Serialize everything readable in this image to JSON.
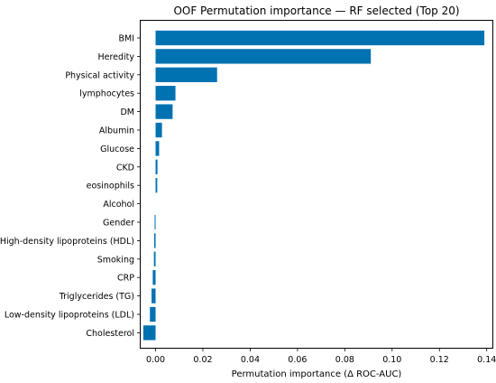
{
  "chart_data": {
    "type": "bar",
    "orientation": "horizontal",
    "title": "OOF Permutation importance — RF selected (Top 20)",
    "xlabel": "Permutation importance (Δ ROC-AUC)",
    "ylabel": "",
    "xlim": [
      -0.0063,
      0.1424
    ],
    "xticks": [
      "0.00",
      "0.02",
      "0.04",
      "0.06",
      "0.08",
      "0.10",
      "0.12",
      "0.14"
    ],
    "grid": false,
    "bar_color": "#0072b2",
    "categories": [
      "BMI",
      "Heredity",
      "Physical activity",
      "lymphocytes",
      "DM",
      "Albumin",
      "Glucose",
      "CKD",
      "eosinophils",
      "Alcohol",
      "Gender",
      "High-density lipoproteins (HDL)",
      "Smoking",
      "CRP",
      "Triglycerides (TG)",
      "Low-density lipoproteins (LDL)",
      "Cholesterol"
    ],
    "values": [
      0.139,
      0.091,
      0.026,
      0.0084,
      0.0072,
      0.0027,
      0.0015,
      0.0008,
      0.0007,
      0.0,
      -0.0004,
      -0.0006,
      -0.0007,
      -0.0012,
      -0.0017,
      -0.0024,
      -0.0052
    ]
  }
}
